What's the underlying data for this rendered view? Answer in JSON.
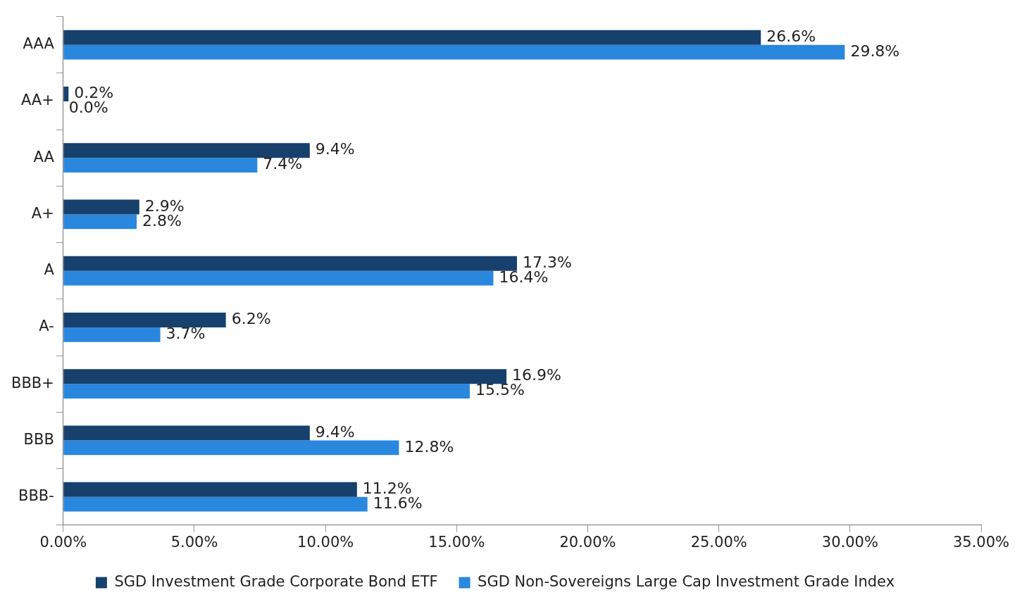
{
  "chart_data": {
    "type": "bar",
    "orientation": "horizontal",
    "categories": [
      "AAA",
      "AA+",
      "AA",
      "A+",
      "A",
      "A-",
      "BBB+",
      "BBB",
      "BBB-"
    ],
    "series": [
      {
        "name": "SGD Investment Grade Corporate Bond ETF",
        "color": "#17406d",
        "values": [
          26.6,
          0.2,
          9.4,
          2.9,
          17.3,
          6.2,
          16.9,
          9.4,
          11.2
        ],
        "value_labels": [
          "26.6%",
          "0.2%",
          "9.4%",
          "2.9%",
          "17.3%",
          "6.2%",
          "16.9%",
          "9.4%",
          "11.2%"
        ]
      },
      {
        "name": "SGD Non-Sovereigns Large Cap Investment Grade Index",
        "color": "#2a87de",
        "values": [
          29.8,
          0.0,
          7.4,
          2.8,
          16.4,
          3.7,
          15.5,
          12.8,
          11.6
        ],
        "value_labels": [
          "29.8%",
          "0.0%",
          "7.4%",
          "2.8%",
          "16.4%",
          "3.7%",
          "15.5%",
          "12.8%",
          "11.6%"
        ]
      }
    ],
    "xlim": [
      0,
      35
    ],
    "xticks": [
      {
        "value": 0,
        "label": "0.00%"
      },
      {
        "value": 5,
        "label": "5.00%"
      },
      {
        "value": 10,
        "label": "10.00%"
      },
      {
        "value": 15,
        "label": "15.00%"
      },
      {
        "value": 20,
        "label": "20.00%"
      },
      {
        "value": 25,
        "label": "25.00%"
      },
      {
        "value": 30,
        "label": "30.00%"
      },
      {
        "value": 35,
        "label": "35.00%"
      }
    ],
    "grid": false,
    "legend": "bottom"
  }
}
